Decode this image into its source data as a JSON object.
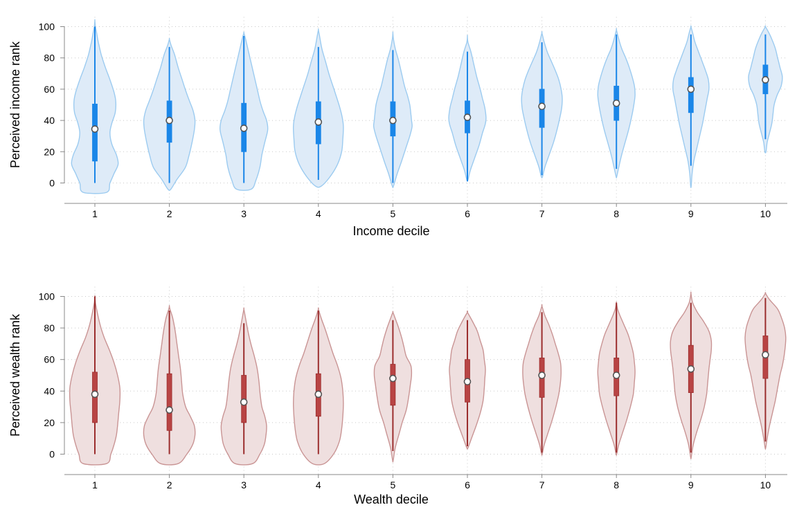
{
  "chart_data": [
    {
      "type": "violin",
      "xlabel": "Income decile",
      "ylabel": "Perceived income rank",
      "categories": [
        "1",
        "2",
        "3",
        "4",
        "5",
        "6",
        "7",
        "8",
        "9",
        "10"
      ],
      "ylim": [
        0,
        100
      ],
      "yticks": [
        "0",
        "20",
        "40",
        "60",
        "80",
        "100"
      ],
      "grid": true,
      "colors": {
        "fill": "#deebf8",
        "outline": "#9ccbf0",
        "whisker": "#1a86e8",
        "box": "#1a86e8",
        "median_fill": "#ffffff",
        "median_stroke": "#555555"
      },
      "groups": [
        {
          "category": "1",
          "median": 34.5,
          "q1": 14,
          "q3": 50.5,
          "whisker_low": 0,
          "whisker_high": 100
        },
        {
          "category": "2",
          "median": 40,
          "q1": 26,
          "q3": 52.5,
          "whisker_low": 0,
          "whisker_high": 87
        },
        {
          "category": "3",
          "median": 35,
          "q1": 20,
          "q3": 51,
          "whisker_low": 0,
          "whisker_high": 94
        },
        {
          "category": "4",
          "median": 39,
          "q1": 25,
          "q3": 52,
          "whisker_low": 2,
          "whisker_high": 87
        },
        {
          "category": "5",
          "median": 40,
          "q1": 30,
          "q3": 52,
          "whisker_low": 0,
          "whisker_high": 85
        },
        {
          "category": "6",
          "median": 42,
          "q1": 32,
          "q3": 52.5,
          "whisker_low": 1,
          "whisker_high": 84
        },
        {
          "category": "7",
          "median": 49,
          "q1": 35.5,
          "q3": 60,
          "whisker_low": 5,
          "whisker_high": 90
        },
        {
          "category": "8",
          "median": 51,
          "q1": 40,
          "q3": 62,
          "whisker_low": 9,
          "whisker_high": 95
        },
        {
          "category": "9",
          "median": 60,
          "q1": 45,
          "q3": 67.5,
          "whisker_low": 11,
          "whisker_high": 95
        },
        {
          "category": "10",
          "median": 66,
          "q1": 57,
          "q3": 75.5,
          "whisker_low": 28,
          "whisker_high": 95
        }
      ]
    },
    {
      "type": "violin",
      "xlabel": "Wealth decile",
      "ylabel": "Perceived wealth rank",
      "categories": [
        "1",
        "2",
        "3",
        "4",
        "5",
        "6",
        "7",
        "8",
        "9",
        "10"
      ],
      "ylim": [
        0,
        100
      ],
      "yticks": [
        "0",
        "20",
        "40",
        "60",
        "80",
        "100"
      ],
      "grid": true,
      "colors": {
        "fill": "#efdfdf",
        "outline": "#c99494",
        "whisker": "#9b2d2d",
        "box": "#b84444",
        "median_fill": "#ffffff",
        "median_stroke": "#555555"
      },
      "groups": [
        {
          "category": "1",
          "median": 38,
          "q1": 20,
          "q3": 52,
          "whisker_low": 0,
          "whisker_high": 100
        },
        {
          "category": "2",
          "median": 28,
          "q1": 15,
          "q3": 51,
          "whisker_low": 0,
          "whisker_high": 91
        },
        {
          "category": "3",
          "median": 33,
          "q1": 20,
          "q3": 50,
          "whisker_low": 0,
          "whisker_high": 83
        },
        {
          "category": "4",
          "median": 38,
          "q1": 24,
          "q3": 51,
          "whisker_low": 0,
          "whisker_high": 91
        },
        {
          "category": "5",
          "median": 48,
          "q1": 31,
          "q3": 57,
          "whisker_low": 2,
          "whisker_high": 85
        },
        {
          "category": "6",
          "median": 46,
          "q1": 33,
          "q3": 60,
          "whisker_low": 5,
          "whisker_high": 85
        },
        {
          "category": "7",
          "median": 50,
          "q1": 36,
          "q3": 61,
          "whisker_low": 1,
          "whisker_high": 90
        },
        {
          "category": "8",
          "median": 50,
          "q1": 37,
          "q3": 61,
          "whisker_low": 1,
          "whisker_high": 96
        },
        {
          "category": "9",
          "median": 54,
          "q1": 39,
          "q3": 69,
          "whisker_low": 1,
          "whisker_high": 96
        },
        {
          "category": "10",
          "median": 63,
          "q1": 48,
          "q3": 75,
          "whisker_low": 8,
          "whisker_high": 99
        }
      ]
    }
  ]
}
